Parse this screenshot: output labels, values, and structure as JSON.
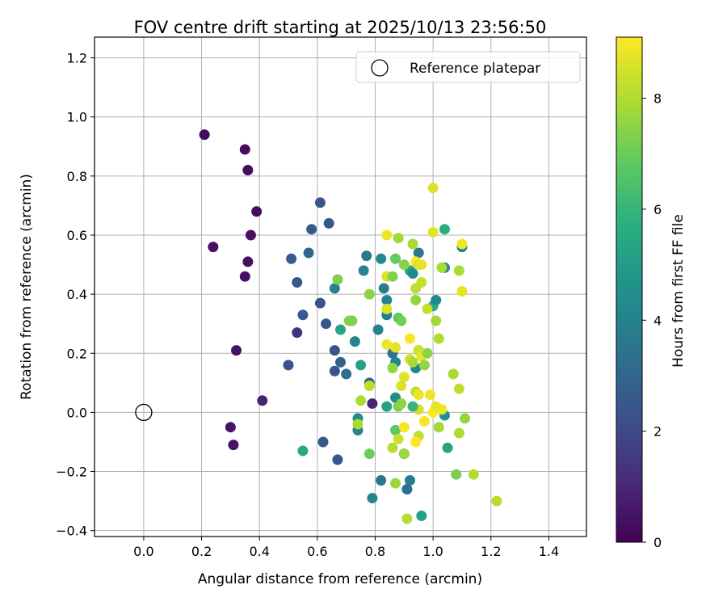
{
  "chart_data": {
    "type": "scatter",
    "title": "FOV centre drift starting at 2025/10/13 23:56:50",
    "xlabel": "Angular distance from reference (arcmin)",
    "ylabel": "Rotation from reference (arcmin)",
    "xlim": [
      -0.17,
      1.53
    ],
    "ylim": [
      -0.42,
      1.27
    ],
    "x_ticks": [
      0.0,
      0.2,
      0.4,
      0.6,
      0.8,
      1.0,
      1.2,
      1.4
    ],
    "x_tick_labels": [
      "0.0",
      "0.2",
      "0.4",
      "0.6",
      "0.8",
      "1.0",
      "1.2",
      "1.4"
    ],
    "y_ticks": [
      -0.4,
      -0.2,
      0.0,
      0.2,
      0.4,
      0.6,
      0.8,
      1.0,
      1.2
    ],
    "y_tick_labels": [
      "−0.4",
      "−0.2",
      "0.0",
      "0.2",
      "0.4",
      "0.6",
      "0.8",
      "1.0",
      "1.2"
    ],
    "grid": true,
    "legend": {
      "placement": "top-right",
      "entries": [
        {
          "label": "Reference platepar",
          "marker": "open-circle"
        }
      ]
    },
    "reference_point": {
      "x": 0.0,
      "y": 0.0
    },
    "colorbar": {
      "label": "Hours from first FF file",
      "range": [
        0,
        9.1
      ],
      "ticks": [
        0,
        2,
        4,
        6,
        8
      ],
      "tick_labels": [
        "0",
        "2",
        "4",
        "6",
        "8"
      ],
      "colormap": "viridis"
    },
    "points": [
      [
        0.21,
        0.94,
        0.3
      ],
      [
        0.35,
        0.89,
        0.3
      ],
      [
        0.36,
        0.82,
        0.3
      ],
      [
        0.39,
        0.68,
        0.3
      ],
      [
        0.24,
        0.56,
        0.4
      ],
      [
        0.37,
        0.6,
        0.4
      ],
      [
        0.36,
        0.51,
        0.4
      ],
      [
        0.35,
        0.46,
        0.4
      ],
      [
        0.32,
        0.21,
        0.5
      ],
      [
        0.3,
        -0.05,
        0.5
      ],
      [
        0.31,
        -0.11,
        0.5
      ],
      [
        0.41,
        0.04,
        0.9
      ],
      [
        0.53,
        0.27,
        1.3
      ],
      [
        0.61,
        0.71,
        2.3
      ],
      [
        0.58,
        0.62,
        2.5
      ],
      [
        0.64,
        0.64,
        2.5
      ],
      [
        0.51,
        0.52,
        2.6
      ],
      [
        0.57,
        0.54,
        3.0
      ],
      [
        0.53,
        0.44,
        2.5
      ],
      [
        0.61,
        0.37,
        2.3
      ],
      [
        0.55,
        0.33,
        2.6
      ],
      [
        0.63,
        0.3,
        2.4
      ],
      [
        0.66,
        0.21,
        2.4
      ],
      [
        0.5,
        0.16,
        2.3
      ],
      [
        0.66,
        0.14,
        2.4
      ],
      [
        0.68,
        0.17,
        2.8
      ],
      [
        0.7,
        0.13,
        3.3
      ],
      [
        0.62,
        -0.1,
        2.4
      ],
      [
        0.67,
        -0.16,
        2.5
      ],
      [
        0.66,
        0.42,
        4.0
      ],
      [
        0.76,
        0.48,
        4.0
      ],
      [
        0.77,
        0.53,
        3.6
      ],
      [
        0.78,
        0.4,
        7.5
      ],
      [
        0.82,
        0.52,
        4.3
      ],
      [
        0.84,
        0.33,
        3.8
      ],
      [
        0.84,
        0.38,
        4.0
      ],
      [
        0.83,
        0.42,
        3.8
      ],
      [
        0.81,
        0.28,
        4.0
      ],
      [
        0.78,
        0.1,
        2.8
      ],
      [
        0.79,
        0.03,
        0.9
      ],
      [
        0.73,
        0.24,
        4.1
      ],
      [
        0.75,
        0.16,
        5.2
      ],
      [
        0.68,
        0.28,
        5.3
      ],
      [
        0.71,
        0.31,
        7.3
      ],
      [
        0.74,
        -0.02,
        4.3
      ],
      [
        0.74,
        -0.06,
        4.0
      ],
      [
        0.78,
        -0.14,
        7.0
      ],
      [
        0.79,
        -0.29,
        4.2
      ],
      [
        0.82,
        -0.23,
        3.6
      ],
      [
        0.84,
        0.02,
        5.2
      ],
      [
        0.86,
        0.2,
        3.5
      ],
      [
        0.87,
        0.17,
        4.0
      ],
      [
        0.87,
        0.05,
        4.3
      ],
      [
        0.92,
        0.48,
        5.2
      ],
      [
        0.93,
        0.47,
        4.3
      ],
      [
        0.95,
        0.54,
        3.6
      ],
      [
        0.94,
        0.38,
        7.6
      ],
      [
        0.94,
        0.15,
        4.1
      ],
      [
        0.95,
        0.21,
        3.8
      ],
      [
        0.9,
        -0.14,
        4.1
      ],
      [
        0.92,
        -0.23,
        3.8
      ],
      [
        0.91,
        -0.26,
        3.3
      ],
      [
        0.96,
        -0.35,
        5.1
      ],
      [
        1.0,
        0.36,
        5.6
      ],
      [
        1.01,
        0.38,
        4.3
      ],
      [
        1.04,
        0.62,
        5.7
      ],
      [
        1.04,
        0.49,
        4.2
      ],
      [
        1.04,
        -0.01,
        4.6
      ],
      [
        1.05,
        -0.12,
        5.3
      ],
      [
        1.1,
        0.56,
        3.9
      ],
      [
        0.55,
        -0.13,
        5.5
      ],
      [
        0.67,
        0.45,
        7.3
      ],
      [
        0.72,
        0.31,
        7.3
      ],
      [
        0.78,
        0.09,
        8.2
      ],
      [
        0.75,
        0.04,
        7.9
      ],
      [
        0.74,
        -0.04,
        7.9
      ],
      [
        0.84,
        0.6,
        8.9
      ],
      [
        0.88,
        0.59,
        7.8
      ],
      [
        0.9,
        0.5,
        7.4
      ],
      [
        0.87,
        0.52,
        6.9
      ],
      [
        0.84,
        0.46,
        8.6
      ],
      [
        0.86,
        0.46,
        7.3
      ],
      [
        0.88,
        0.32,
        6.8
      ],
      [
        0.89,
        0.31,
        7.1
      ],
      [
        0.84,
        0.35,
        8.6
      ],
      [
        0.87,
        0.22,
        8.7
      ],
      [
        0.86,
        0.15,
        7.6
      ],
      [
        0.84,
        0.23,
        8.9
      ],
      [
        0.87,
        -0.06,
        6.8
      ],
      [
        0.87,
        -0.24,
        7.7
      ],
      [
        0.86,
        -0.12,
        8.1
      ],
      [
        0.88,
        -0.09,
        8.4
      ],
      [
        0.88,
        0.02,
        7.3
      ],
      [
        0.89,
        0.09,
        8.6
      ],
      [
        0.9,
        0.12,
        8.7
      ],
      [
        0.89,
        0.03,
        7.5
      ],
      [
        0.9,
        -0.05,
        9.0
      ],
      [
        0.9,
        -0.14,
        7.7
      ],
      [
        0.91,
        -0.36,
        8.1
      ],
      [
        0.93,
        0.57,
        7.9
      ],
      [
        0.94,
        0.51,
        9.1
      ],
      [
        0.95,
        0.5,
        8.6
      ],
      [
        0.96,
        0.44,
        8.3
      ],
      [
        0.94,
        0.42,
        8.2
      ],
      [
        0.92,
        0.25,
        9.0
      ],
      [
        0.92,
        0.18,
        8.5
      ],
      [
        0.93,
        0.17,
        7.9
      ],
      [
        0.95,
        0.21,
        8.4
      ],
      [
        0.96,
        0.19,
        8.8
      ],
      [
        0.97,
        0.16,
        7.6
      ],
      [
        0.94,
        0.07,
        8.2
      ],
      [
        0.95,
        0.01,
        8.5
      ],
      [
        0.95,
        0.06,
        8.9
      ],
      [
        0.95,
        -0.08,
        8.3
      ],
      [
        0.94,
        -0.1,
        9.1
      ],
      [
        0.96,
        0.5,
        8.8
      ],
      [
        0.98,
        0.35,
        8.3
      ],
      [
        0.97,
        -0.03,
        9.0
      ],
      [
        0.98,
        0.2,
        7.5
      ],
      [
        0.99,
        0.06,
        8.9
      ],
      [
        1.0,
        0.76,
        8.6
      ],
      [
        1.0,
        0.61,
        8.7
      ],
      [
        1.01,
        0.31,
        7.8
      ],
      [
        1.02,
        0.25,
        8.0
      ],
      [
        1.0,
        0.0,
        9.1
      ],
      [
        1.01,
        0.02,
        8.8
      ],
      [
        1.02,
        -0.05,
        7.8
      ],
      [
        1.03,
        0.49,
        7.9
      ],
      [
        1.07,
        0.13,
        7.9
      ],
      [
        1.08,
        -0.21,
        7.2
      ],
      [
        1.09,
        0.08,
        8.2
      ],
      [
        1.09,
        -0.07,
        8.0
      ],
      [
        1.09,
        0.48,
        7.9
      ],
      [
        1.1,
        0.57,
        8.9
      ],
      [
        1.1,
        0.41,
        8.8
      ],
      [
        1.11,
        -0.02,
        7.6
      ],
      [
        1.14,
        -0.21,
        8.0
      ],
      [
        1.22,
        -0.3,
        8.1
      ],
      [
        1.03,
        0.01,
        8.9
      ],
      [
        0.93,
        0.02,
        6.0
      ]
    ]
  }
}
